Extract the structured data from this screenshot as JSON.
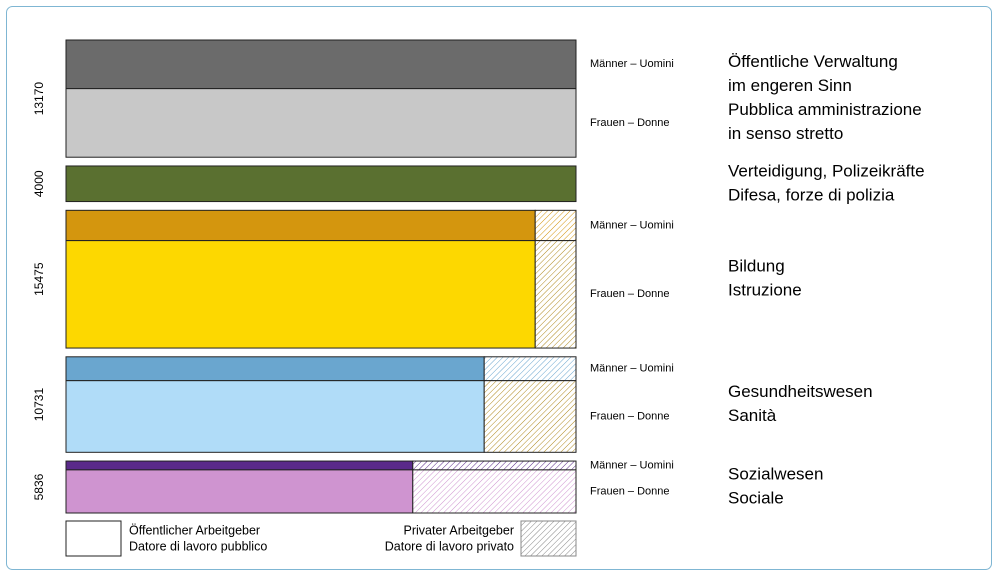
{
  "chart_data": {
    "type": "mosaic",
    "groups": [
      {
        "total": 13170,
        "label": [
          "Öffentliche Verwaltung",
          "im engeren Sinn",
          "Pubblica amministrazione",
          "in senso stretto"
        ],
        "rows": [
          {
            "name": "Männer – Uomini",
            "share": 41.5,
            "public": 100,
            "color": "#6b6b6b"
          },
          {
            "name": "Frauen – Donne",
            "share": 58.5,
            "public": 100,
            "color": "#c8c8c8"
          }
        ]
      },
      {
        "total": 4000,
        "label": [
          "Verteidigung, Polizeikräfte",
          "Difesa, forze di polizia"
        ],
        "rows": [
          {
            "share": 100,
            "public": 100,
            "color": "#5a7030"
          }
        ]
      },
      {
        "total": 15475,
        "label": [
          "Bildung",
          "Istruzione"
        ],
        "rows": [
          {
            "name": "Männer – Uomini",
            "share": 22,
            "public": 92,
            "color": "#d4960e"
          },
          {
            "name": "Frauen – Donne",
            "share": 78,
            "public": 92,
            "color": "#fdd800"
          }
        ]
      },
      {
        "total": 10731,
        "label": [
          "Gesundheitswesen",
          "Sanità"
        ],
        "rows": [
          {
            "name": "Männer – Uomini",
            "share": 25,
            "public": 82,
            "color": "#6aa6cf"
          },
          {
            "name": "Frauen – Donne",
            "share": 75,
            "public": 82,
            "color": "#b0dcf8"
          }
        ]
      },
      {
        "total": 5836,
        "label": [
          "Sozialwesen",
          "Sociale"
        ],
        "rows": [
          {
            "name": "Männer – Uomini",
            "share": 17,
            "public": 68,
            "color": "#5a2a8a"
          },
          {
            "name": "Frauen – Donne",
            "share": 83,
            "public": 68,
            "color": "#cf94d0"
          }
        ]
      }
    ],
    "legend": {
      "public": [
        "Öffentlicher Arbeitgeber",
        "Datore di lavoro pubblico"
      ],
      "private": [
        "Privater Arbeitgeber",
        "Datore di lavoro privato"
      ]
    }
  }
}
